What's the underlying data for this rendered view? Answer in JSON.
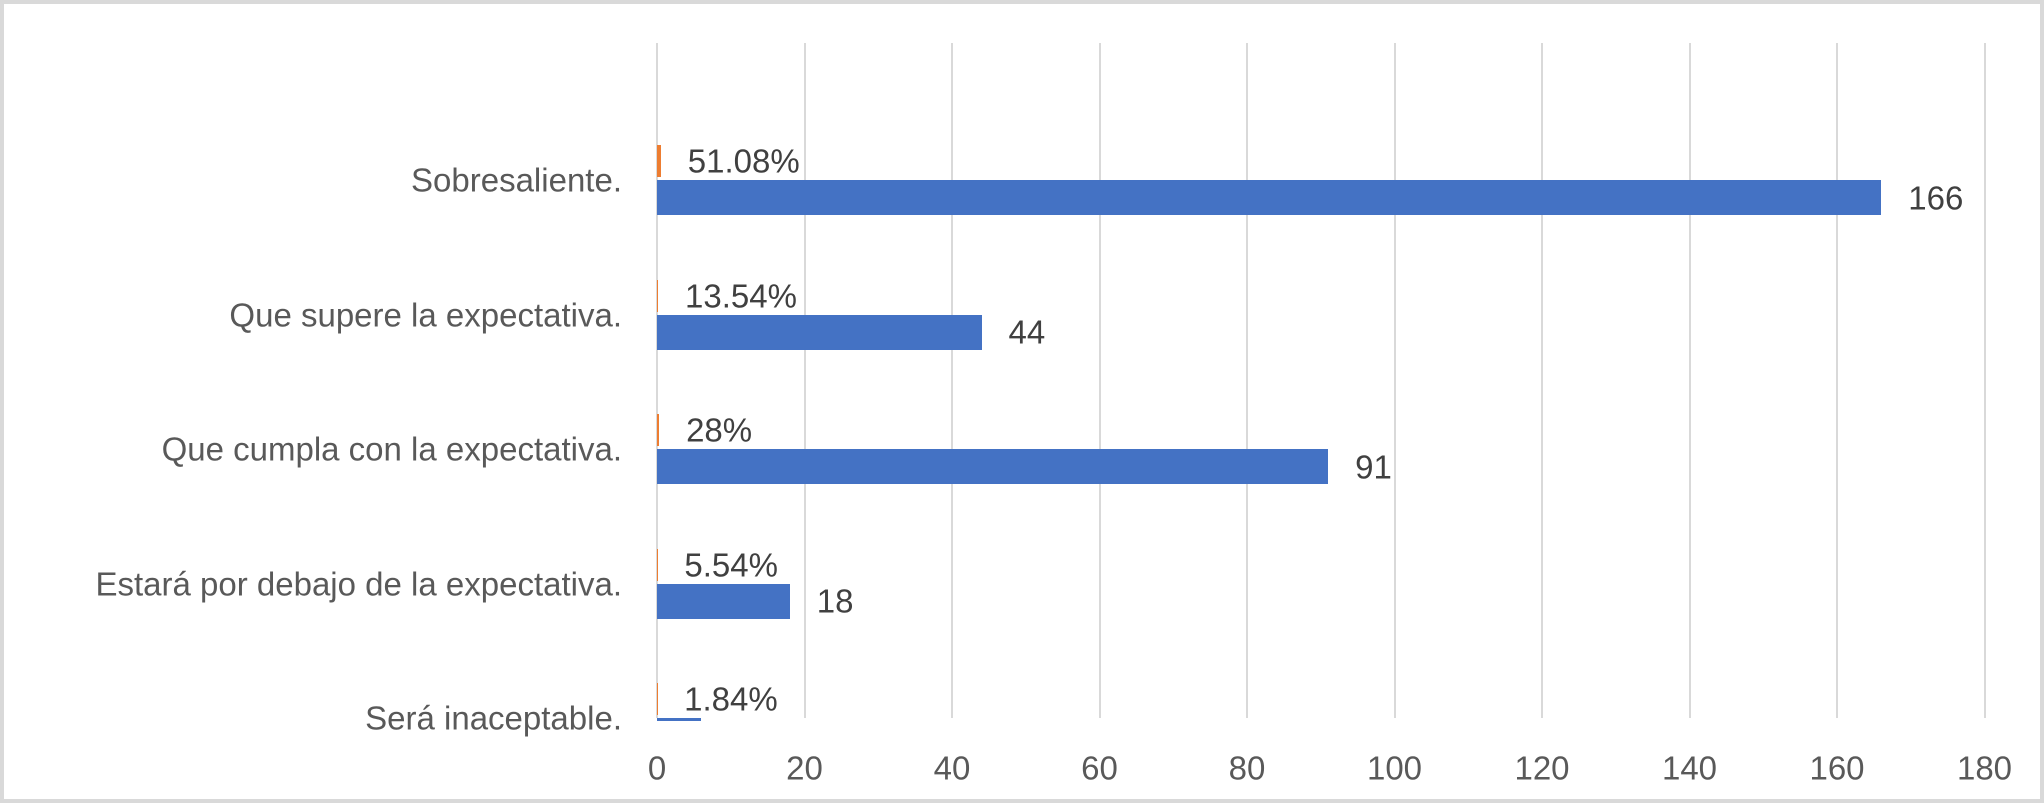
{
  "chart": {
    "background_color": "#ffffff",
    "frame_border_color": "#d9d9d9",
    "gridline_color": "#d9d9d9",
    "category_label_color": "#595959",
    "tick_label_color": "#595959",
    "data_label_color": "#404040",
    "accent_blue": "#4472C4",
    "accent_orange": "#ED7D31"
  },
  "chart_data": {
    "type": "bar",
    "orientation": "horizontal",
    "title": "",
    "legend": "none",
    "grid": "vertical-only",
    "categories": [
      "Sobresaliente.",
      "Que supere la expectativa.",
      "Que cumpla con la expectativa.",
      "Estará por debajo de la expectativa.",
      "Será inaceptable."
    ],
    "series": [
      {
        "name": "count",
        "color": "#4472C4",
        "values": [
          166,
          44,
          91,
          18,
          6
        ],
        "data_labels": [
          "166",
          "44",
          "91",
          "18",
          ""
        ]
      },
      {
        "name": "percentage-fraction",
        "color": "#ED7D31",
        "values": [
          0.5108,
          0.1354,
          0.28,
          0.0554,
          0.0184
        ],
        "data_labels": [
          "51.08%",
          "13.54%",
          "28%",
          "5.54%",
          "1.84%"
        ]
      }
    ],
    "x_axis": {
      "min": 0,
      "max": 180,
      "tick_step": 20,
      "tick_labels": [
        "0",
        "20",
        "40",
        "60",
        "80",
        "100",
        "120",
        "140",
        "160",
        "180"
      ]
    }
  }
}
